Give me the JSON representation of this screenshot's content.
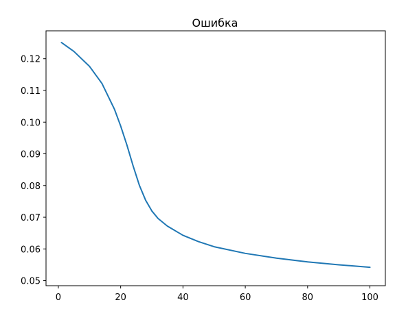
{
  "chart_data": {
    "type": "line",
    "title": "Ошибка",
    "xlabel": "",
    "ylabel": "",
    "xlim": [
      -3.95,
      104.95
    ],
    "ylim": [
      0.0484,
      0.1288
    ],
    "xticks": [
      0,
      20,
      40,
      60,
      80,
      100
    ],
    "xtick_labels": [
      "0",
      "20",
      "40",
      "60",
      "80",
      "100"
    ],
    "yticks": [
      0.05,
      0.06,
      0.07,
      0.08,
      0.09,
      0.1,
      0.11,
      0.12
    ],
    "ytick_labels": [
      "0.05",
      "0.06",
      "0.07",
      "0.08",
      "0.09",
      "0.10",
      "0.11",
      "0.12"
    ],
    "grid": false,
    "line_color": "#1f77b4",
    "series": [
      {
        "x": [
          1,
          5,
          10,
          14,
          18,
          20,
          22,
          24,
          26,
          28,
          30,
          32,
          35,
          40,
          45,
          50,
          60,
          70,
          80,
          90,
          100
        ],
        "y": [
          0.1251,
          0.1223,
          0.1176,
          0.1122,
          0.1041,
          0.0988,
          0.0928,
          0.0862,
          0.0801,
          0.0754,
          0.072,
          0.0696,
          0.0672,
          0.0643,
          0.0623,
          0.0607,
          0.0586,
          0.0571,
          0.0559,
          0.055,
          0.0542
        ]
      }
    ]
  }
}
